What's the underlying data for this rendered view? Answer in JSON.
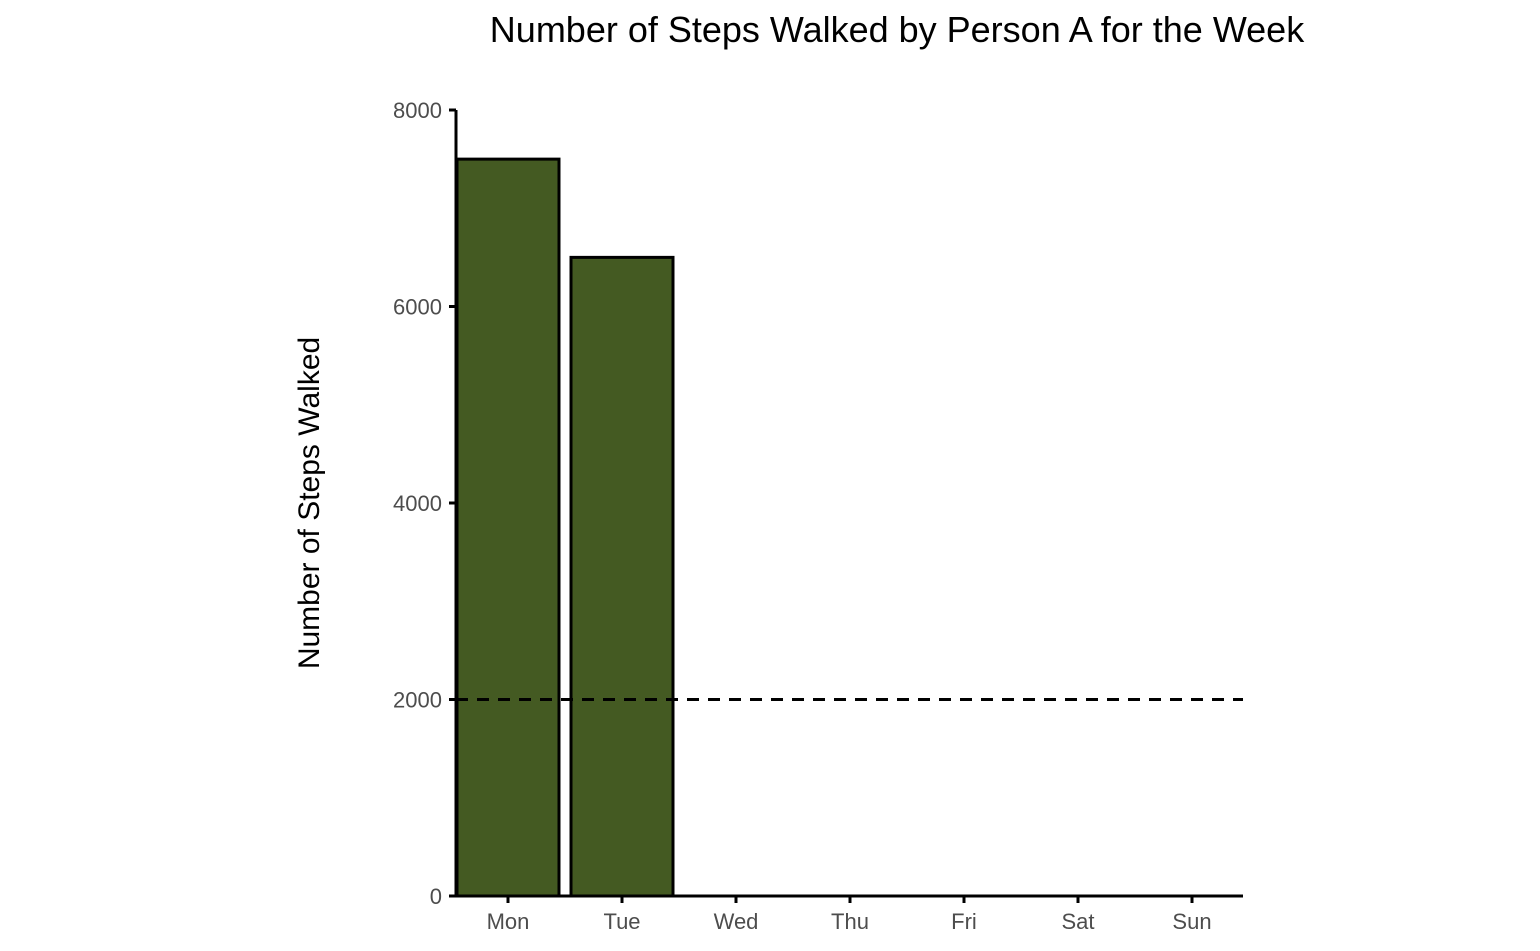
{
  "chart_data": {
    "type": "bar",
    "title": "Number of Steps Walked by Person A for the Week",
    "xlabel": "",
    "ylabel": "Number of Steps Walked",
    "categories": [
      "Mon",
      "Tue",
      "Wed",
      "Thu",
      "Fri",
      "Sat",
      "Sun"
    ],
    "values": [
      7500,
      6500,
      0,
      0,
      0,
      0,
      0
    ],
    "ylim": [
      0,
      8000
    ],
    "yticks": [
      0,
      2000,
      4000,
      6000,
      8000
    ],
    "reference_line": {
      "value": 2000,
      "style": "dashed"
    },
    "grid": false,
    "legend": "none",
    "colors": {
      "bar_fill": "#445a22",
      "bar_stroke": "#000000",
      "axis": "#000000",
      "tick_text": "#4d4d4d"
    }
  }
}
